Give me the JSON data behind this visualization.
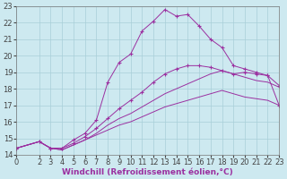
{
  "xlabel": "Windchill (Refroidissement éolien,°C)",
  "xlim": [
    0,
    23
  ],
  "ylim": [
    14,
    23
  ],
  "xticks": [
    0,
    2,
    3,
    4,
    5,
    6,
    7,
    8,
    9,
    10,
    11,
    12,
    13,
    14,
    15,
    16,
    17,
    18,
    19,
    20,
    21,
    22,
    23
  ],
  "yticks": [
    14,
    15,
    16,
    17,
    18,
    19,
    20,
    21,
    22,
    23
  ],
  "bg_color": "#cde9f0",
  "line_color": "#9b30a0",
  "grid_color": "#a8cfd8",
  "curve1_x": [
    0,
    2,
    3,
    4,
    5,
    6,
    7,
    8,
    9,
    10,
    11,
    12,
    13,
    14,
    15,
    16,
    17,
    18,
    19,
    20,
    21,
    22,
    23
  ],
  "curve1_y": [
    14.4,
    14.8,
    14.4,
    14.3,
    14.6,
    14.9,
    15.2,
    15.5,
    15.8,
    16.0,
    16.3,
    16.6,
    16.9,
    17.1,
    17.3,
    17.5,
    17.7,
    17.9,
    17.7,
    17.5,
    17.4,
    17.3,
    17.0
  ],
  "curve2_x": [
    0,
    2,
    3,
    4,
    5,
    6,
    7,
    8,
    9,
    10,
    11,
    12,
    13,
    14,
    15,
    16,
    17,
    18,
    19,
    20,
    21,
    22,
    23
  ],
  "curve2_y": [
    14.4,
    14.8,
    14.4,
    14.3,
    14.6,
    14.9,
    15.3,
    15.8,
    16.2,
    16.5,
    16.9,
    17.3,
    17.7,
    18.0,
    18.3,
    18.6,
    18.9,
    19.1,
    18.9,
    18.7,
    18.5,
    18.4,
    18.1
  ],
  "curve3_x": [
    0,
    2,
    3,
    4,
    5,
    6,
    7,
    8,
    9,
    10,
    11,
    12,
    13,
    14,
    15,
    16,
    17,
    18,
    19,
    20,
    21,
    22,
    23
  ],
  "curve3_y": [
    14.4,
    14.8,
    14.4,
    14.4,
    14.7,
    15.1,
    15.6,
    16.2,
    16.8,
    17.3,
    17.8,
    18.4,
    18.9,
    19.2,
    19.4,
    19.4,
    19.3,
    19.1,
    18.9,
    19.0,
    18.9,
    18.8,
    18.2
  ],
  "curve4_x": [
    0,
    2,
    3,
    4,
    5,
    6,
    7,
    8,
    9,
    10,
    11,
    12,
    13,
    14,
    15,
    16,
    17,
    18,
    19,
    20,
    21,
    22,
    23
  ],
  "curve4_y": [
    14.4,
    14.8,
    14.4,
    14.4,
    14.9,
    15.3,
    16.1,
    18.4,
    19.6,
    20.1,
    21.5,
    22.1,
    22.8,
    22.4,
    22.5,
    21.8,
    21.0,
    20.5,
    19.4,
    19.2,
    19.0,
    18.8,
    17.0
  ],
  "xlabel_fontsize": 6.5,
  "tick_fontsize": 6.0
}
